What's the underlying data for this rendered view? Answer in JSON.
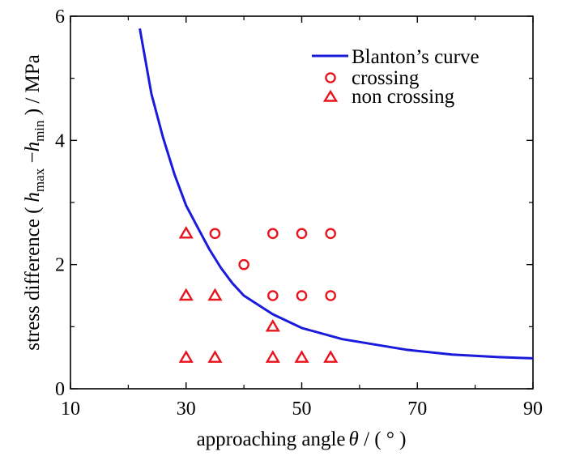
{
  "chart_data": {
    "type": "scatter",
    "xlabel_prefix": "approaching angle",
    "xlabel_symbol": "θ",
    "xlabel_suffix": " / ( ° )",
    "ylabel_prefix": "stress difference (",
    "ylabel_h": "h",
    "ylabel_max_sub": "max",
    "ylabel_minus": " −",
    "ylabel_min_sub": "min",
    "ylabel_suffix": " ) / MPa",
    "xlim": [
      10,
      90
    ],
    "ylim": [
      0,
      6
    ],
    "x_ticks": [
      10,
      30,
      50,
      70,
      90
    ],
    "y_ticks": [
      0,
      2,
      4,
      6
    ],
    "x_minor_ticks": [
      20,
      40,
      60,
      80
    ],
    "y_minor_ticks": [
      1,
      3,
      5
    ],
    "grid": false,
    "legend_position": "top-right",
    "colors": {
      "curve": "#1a1adb",
      "markers": "#e8141e"
    },
    "series": [
      {
        "name": "Blanton’s curve",
        "kind": "line",
        "points": [
          [
            22,
            5.8
          ],
          [
            24,
            4.75
          ],
          [
            26,
            4.05
          ],
          [
            28,
            3.45
          ],
          [
            30,
            2.95
          ],
          [
            32,
            2.6
          ],
          [
            34,
            2.25
          ],
          [
            36,
            1.95
          ],
          [
            38,
            1.7
          ],
          [
            40,
            1.5
          ],
          [
            45,
            1.2
          ],
          [
            50,
            0.98
          ],
          [
            57,
            0.8
          ],
          [
            68,
            0.63
          ],
          [
            76,
            0.55
          ],
          [
            84,
            0.51
          ],
          [
            90,
            0.49
          ]
        ]
      },
      {
        "name": "crossing",
        "kind": "circle",
        "points": [
          [
            35,
            2.5
          ],
          [
            45,
            2.5
          ],
          [
            50,
            2.5
          ],
          [
            55,
            2.5
          ],
          [
            40,
            2.0
          ],
          [
            45,
            1.5
          ],
          [
            50,
            1.5
          ],
          [
            55,
            1.5
          ]
        ]
      },
      {
        "name": "non crossing",
        "kind": "triangle",
        "points": [
          [
            30,
            2.5
          ],
          [
            30,
            1.5
          ],
          [
            35,
            1.5
          ],
          [
            45,
            1.0
          ],
          [
            30,
            0.5
          ],
          [
            35,
            0.5
          ],
          [
            45,
            0.5
          ],
          [
            50,
            0.5
          ],
          [
            55,
            0.5
          ]
        ]
      }
    ]
  }
}
